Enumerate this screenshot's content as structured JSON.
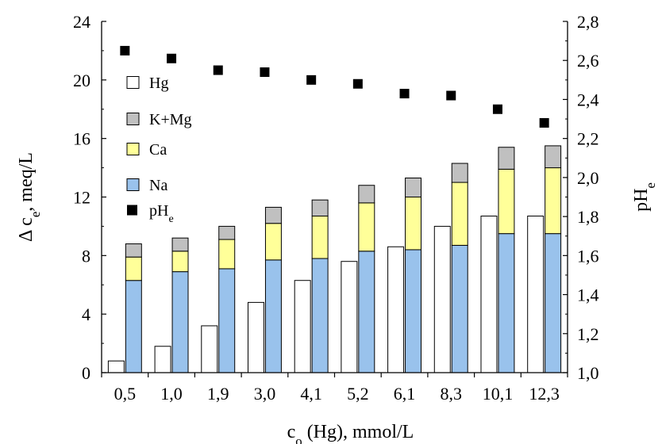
{
  "chart_data": {
    "type": "bar",
    "categories": [
      "0,5",
      "1,0",
      "1,9",
      "3,0",
      "4,1",
      "5,2",
      "6,1",
      "8,3",
      "10,1",
      "12,3"
    ],
    "series": [
      {
        "name": "Hg",
        "stack": "left",
        "color": "#ffffff",
        "values": [
          0.8,
          1.8,
          3.2,
          4.8,
          6.3,
          7.6,
          8.6,
          10.0,
          10.7,
          10.7
        ]
      },
      {
        "name": "Na",
        "stack": "right",
        "color": "#99c2ec",
        "values": [
          6.3,
          6.9,
          7.1,
          7.7,
          7.8,
          8.3,
          8.4,
          8.7,
          9.5,
          9.5
        ]
      },
      {
        "name": "Ca",
        "stack": "right",
        "color": "#ffff99",
        "values": [
          1.6,
          1.4,
          2.0,
          2.5,
          2.9,
          3.3,
          3.6,
          4.3,
          4.4,
          4.5
        ]
      },
      {
        "name": "K+Mg",
        "stack": "right",
        "color": "#c0c0c0",
        "values": [
          0.9,
          0.9,
          0.9,
          1.1,
          1.1,
          1.2,
          1.3,
          1.3,
          1.5,
          1.5
        ]
      },
      {
        "name": "pHe",
        "type": "scatter",
        "axis": "right",
        "color": "#000000",
        "values": [
          2.65,
          2.61,
          2.55,
          2.54,
          2.5,
          2.48,
          2.43,
          2.42,
          2.35,
          2.28
        ]
      }
    ],
    "xlabel": "c₀ (Hg),  mmol/L",
    "ylabel": "Δ cₑ, meq/L",
    "y2label": "pHₑ",
    "ylim": [
      0,
      24
    ],
    "y2lim": [
      1.0,
      2.8
    ],
    "yticks": [
      "0",
      "4",
      "8",
      "12",
      "16",
      "20",
      "24"
    ],
    "y2ticks": [
      "1,0",
      "1,2",
      "1,4",
      "1,6",
      "1,8",
      "2,0",
      "2,2",
      "2,4",
      "2,6",
      "2,8"
    ],
    "legend": {
      "position": "top-left",
      "entries": [
        {
          "label": "Hg",
          "color": "#ffffff",
          "shape": "square"
        },
        {
          "label": "K+Mg",
          "color": "#c0c0c0",
          "shape": "square"
        },
        {
          "label": "Ca",
          "color": "#ffff99",
          "shape": "square"
        },
        {
          "label": "Na",
          "color": "#99c2ec",
          "shape": "square"
        },
        {
          "label": "pHe",
          "color": "#000000",
          "shape": "filled-square"
        }
      ]
    },
    "grid": false
  }
}
